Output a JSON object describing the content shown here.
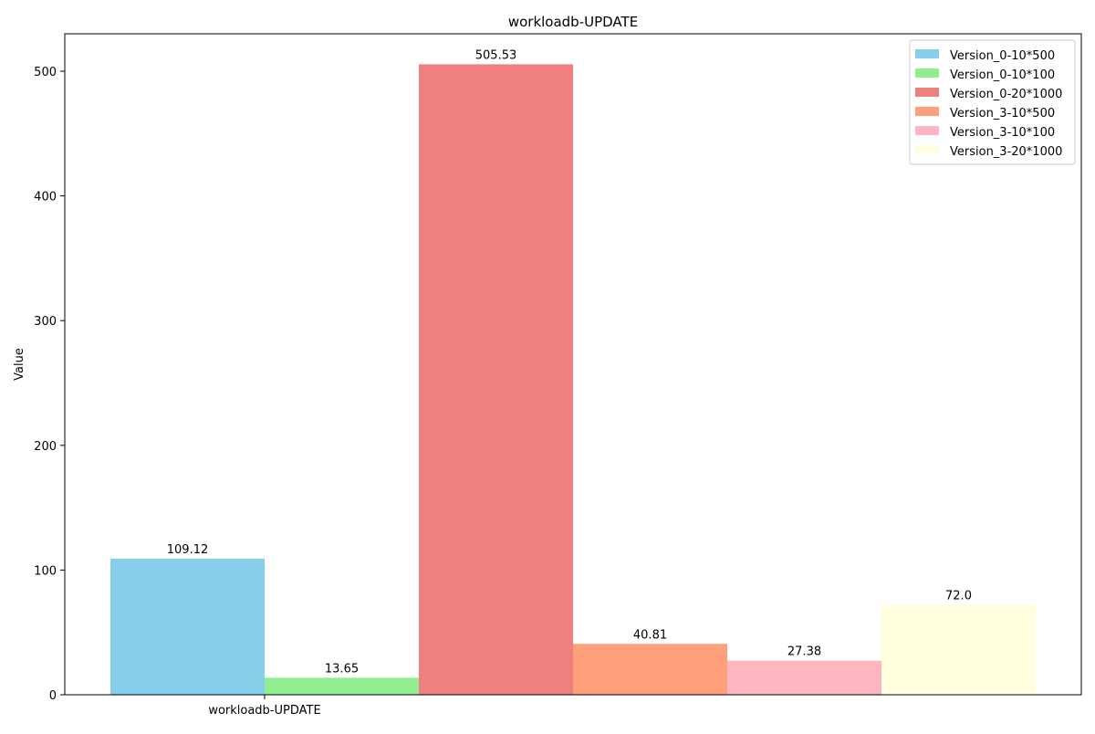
{
  "chart_data": {
    "type": "bar",
    "title": "workloadb-UPDATE",
    "xlabel": "",
    "ylabel": "Value",
    "categories": [
      "workloadb-UPDATE"
    ],
    "ylim": [
      0,
      530
    ],
    "yticks": [
      0,
      100,
      200,
      300,
      400,
      500
    ],
    "grid": false,
    "legend_position": "top-right",
    "series": [
      {
        "name": "Version_0-10*500",
        "values": [
          109.12
        ],
        "label": "109.12",
        "color": "#87CEEB"
      },
      {
        "name": "Version_0-10*100",
        "values": [
          13.65
        ],
        "label": "13.65",
        "color": "#90EE90"
      },
      {
        "name": "Version_0-20*1000",
        "values": [
          505.53
        ],
        "label": "505.53",
        "color": "#F08080"
      },
      {
        "name": "Version_3-10*500",
        "values": [
          40.81
        ],
        "label": "40.81",
        "color": "#FFA07A"
      },
      {
        "name": "Version_3-10*100",
        "values": [
          27.38
        ],
        "label": "27.38",
        "color": "#FFB6C1"
      },
      {
        "name": "Version_3-20*1000",
        "values": [
          72.0
        ],
        "label": "72.0",
        "color": "#FFFFE0"
      }
    ]
  }
}
